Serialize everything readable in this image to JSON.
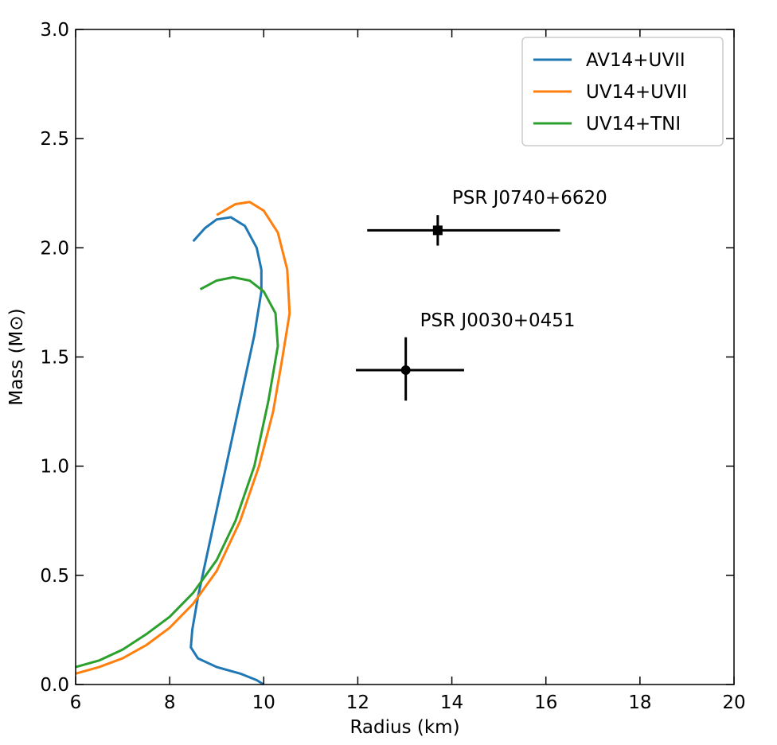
{
  "chart_data": {
    "type": "line",
    "xlabel": "Radius (km)",
    "ylabel": "Mass (M⊙)",
    "xlim": [
      6,
      20
    ],
    "ylim": [
      0.0,
      3.0
    ],
    "xticks": [
      6,
      8,
      10,
      12,
      14,
      16,
      18,
      20
    ],
    "xtick_labels": [
      "6",
      "8",
      "10",
      "12",
      "14",
      "16",
      "18",
      "20"
    ],
    "yticks": [
      0.0,
      0.5,
      1.0,
      1.5,
      2.0,
      2.5,
      3.0
    ],
    "ytick_labels": [
      "0.0",
      "0.5",
      "1.0",
      "1.5",
      "2.0",
      "2.5",
      "3.0"
    ],
    "grid": false,
    "legend_position": "top-right",
    "series": [
      {
        "name": "AV14+UVII",
        "color": "#1f77b4",
        "points": [
          [
            10.0,
            0.0
          ],
          [
            9.85,
            0.02
          ],
          [
            9.5,
            0.05
          ],
          [
            9.0,
            0.08
          ],
          [
            8.6,
            0.12
          ],
          [
            8.45,
            0.17
          ],
          [
            8.48,
            0.25
          ],
          [
            8.6,
            0.4
          ],
          [
            8.8,
            0.6
          ],
          [
            9.0,
            0.8
          ],
          [
            9.2,
            1.0
          ],
          [
            9.4,
            1.2
          ],
          [
            9.6,
            1.4
          ],
          [
            9.8,
            1.6
          ],
          [
            9.95,
            1.8
          ],
          [
            9.95,
            1.9
          ],
          [
            9.85,
            2.0
          ],
          [
            9.6,
            2.1
          ],
          [
            9.3,
            2.14
          ],
          [
            9.0,
            2.13
          ],
          [
            8.75,
            2.09
          ],
          [
            8.5,
            2.03
          ]
        ]
      },
      {
        "name": "UV14+UVII",
        "color": "#ff7f0e",
        "points": [
          [
            6.0,
            0.05
          ],
          [
            6.5,
            0.08
          ],
          [
            7.0,
            0.12
          ],
          [
            7.5,
            0.18
          ],
          [
            8.0,
            0.26
          ],
          [
            8.5,
            0.37
          ],
          [
            9.0,
            0.52
          ],
          [
            9.5,
            0.75
          ],
          [
            9.9,
            1.0
          ],
          [
            10.2,
            1.25
          ],
          [
            10.4,
            1.5
          ],
          [
            10.55,
            1.7
          ],
          [
            10.5,
            1.9
          ],
          [
            10.3,
            2.07
          ],
          [
            10.0,
            2.17
          ],
          [
            9.7,
            2.21
          ],
          [
            9.4,
            2.2
          ],
          [
            9.0,
            2.15
          ]
        ]
      },
      {
        "name": "UV14+TNI",
        "color": "#2ca02c",
        "points": [
          [
            6.0,
            0.08
          ],
          [
            6.5,
            0.11
          ],
          [
            7.0,
            0.16
          ],
          [
            7.5,
            0.23
          ],
          [
            8.0,
            0.31
          ],
          [
            8.5,
            0.42
          ],
          [
            9.0,
            0.57
          ],
          [
            9.4,
            0.75
          ],
          [
            9.8,
            1.0
          ],
          [
            10.1,
            1.3
          ],
          [
            10.3,
            1.55
          ],
          [
            10.25,
            1.7
          ],
          [
            10.0,
            1.8
          ],
          [
            9.7,
            1.85
          ],
          [
            9.35,
            1.865
          ],
          [
            9.0,
            1.85
          ],
          [
            8.65,
            1.81
          ]
        ]
      }
    ],
    "measurements": [
      {
        "label": "PSR J0740+6620",
        "marker": "square",
        "radius": 13.7,
        "mass": 2.08,
        "radius_range": [
          12.2,
          16.3
        ],
        "mass_range": [
          2.01,
          2.15
        ]
      },
      {
        "label": "PSR J0030+0451",
        "marker": "circle",
        "radius": 13.02,
        "mass": 1.44,
        "radius_range": [
          11.96,
          14.26
        ],
        "mass_range": [
          1.3,
          1.59
        ]
      }
    ]
  }
}
